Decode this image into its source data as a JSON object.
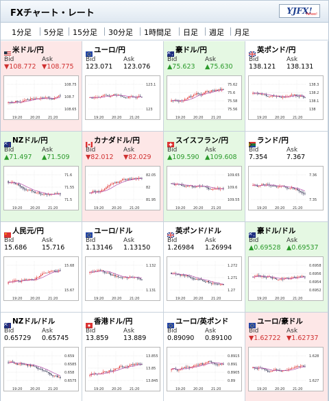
{
  "header": {
    "title": "FXチャート・レート",
    "logo": "YJFX!",
    "logo_sub": "Yahoo!"
  },
  "tabs": [
    "1分足",
    "5分足",
    "15分足",
    "30分足",
    "1時間足",
    "日足",
    "週足",
    "月足"
  ],
  "active_tab": "5分足",
  "colors": {
    "up_bg": "#e5f8e3",
    "down_bg": "#fde7e7",
    "up_text": "#2a9a2a",
    "down_text": "#d03030"
  },
  "pairs": [
    {
      "name": "米ドル/円",
      "flag": "us",
      "trend": "down",
      "bid_label": "Bid",
      "ask_label": "Ask",
      "bid": "▼108.772",
      "ask": "▼108.775",
      "yticks": [
        "108.75",
        "108.7",
        "108.65"
      ],
      "xticks": [
        "19:20",
        "20:20",
        "21:20"
      ],
      "chart_seed": 1,
      "chart_trend": 0.6
    },
    {
      "name": "ユーロ/円",
      "flag": "eu",
      "trend": "none",
      "bid_label": "Bid",
      "ask_label": "Ask",
      "bid": "123.071",
      "ask": "123.076",
      "yticks": [
        "123.1",
        "123"
      ],
      "xticks": [
        "19:20",
        "20:20",
        "21:20"
      ],
      "chart_seed": 2,
      "chart_trend": 0.1
    },
    {
      "name": "豪ドル/円",
      "flag": "au",
      "trend": "up",
      "bid_label": "Bid",
      "ask_label": "Ask",
      "bid": "▲75.623",
      "ask": "▲75.630",
      "yticks": [
        "75.62",
        "75.6",
        "75.58",
        "75.56"
      ],
      "xticks": [
        "19:20",
        "20:20",
        "21:20"
      ],
      "chart_seed": 3,
      "chart_trend": 0.5
    },
    {
      "name": "英ポンド/円",
      "flag": "gb",
      "trend": "none",
      "bid_label": "Bid",
      "ask_label": "Ask",
      "bid": "138.121",
      "ask": "138.131",
      "yticks": [
        "138.3",
        "138.2",
        "138.1",
        "138"
      ],
      "xticks": [
        "19:20",
        "20:20",
        "21:20"
      ],
      "chart_seed": 4,
      "chart_trend": -0.3
    },
    {
      "name": "NZドル/円",
      "flag": "nz",
      "trend": "up",
      "bid_label": "Bid",
      "ask_label": "Ask",
      "bid": "▲71.497",
      "ask": "▲71.509",
      "yticks": [
        "71.6",
        "71.55",
        "71.5"
      ],
      "xticks": [
        "19:20",
        "20:20",
        "21:20"
      ],
      "chart_seed": 5,
      "chart_trend": -0.6
    },
    {
      "name": "カナダドル/円",
      "flag": "ca",
      "trend": "down",
      "bid_label": "Bid",
      "ask_label": "Ask",
      "bid": "▼82.012",
      "ask": "▼82.029",
      "yticks": [
        "82.05",
        "82",
        "81.95"
      ],
      "xticks": [
        "19:20",
        "20:20",
        "21:20"
      ],
      "chart_seed": 6,
      "chart_trend": 0.6
    },
    {
      "name": "スイスフラン/円",
      "flag": "ch",
      "trend": "up",
      "bid_label": "Bid",
      "ask_label": "Ask",
      "bid": "▲109.590",
      "ask": "▲109.608",
      "yticks": [
        "109.65",
        "109.6",
        "109.55"
      ],
      "xticks": [
        "19:20",
        "20:20",
        "21:20"
      ],
      "chart_seed": 7,
      "chart_trend": -0.4
    },
    {
      "name": "ランド/円",
      "flag": "za",
      "trend": "none",
      "bid_label": "Bid",
      "ask_label": "Ask",
      "bid": "7.354",
      "ask": "7.367",
      "yticks": [
        "7.36",
        "7.35"
      ],
      "xticks": [
        "19:20",
        "20:20",
        "21:20"
      ],
      "chart_seed": 8,
      "chart_trend": -0.2
    },
    {
      "name": "人民元/円",
      "flag": "cn",
      "trend": "none",
      "bid_label": "Bid",
      "ask_label": "Ask",
      "bid": "15.686",
      "ask": "15.716",
      "yticks": [
        "15.68",
        "15.67"
      ],
      "xticks": [
        "19:20",
        "20:20",
        "21:20"
      ],
      "chart_seed": 9,
      "chart_trend": 0.6
    },
    {
      "name": "ユーロ/ドル",
      "flag": "eu",
      "trend": "none",
      "bid_label": "Bid",
      "ask_label": "Ask",
      "bid": "1.13146",
      "ask": "1.13150",
      "yticks": [
        "1.132",
        "1.131"
      ],
      "xticks": [
        "19:20",
        "20:20",
        "21:20"
      ],
      "chart_seed": 10,
      "chart_trend": -0.5
    },
    {
      "name": "英ポンド/ドル",
      "flag": "gb",
      "trend": "none",
      "bid_label": "Bid",
      "ask_label": "Ask",
      "bid": "1.26984",
      "ask": "1.26994",
      "yticks": [
        "1.272",
        "1.271",
        "1.27"
      ],
      "xticks": [
        "19:20",
        "20:20",
        "21:20"
      ],
      "chart_seed": 11,
      "chart_trend": -0.5
    },
    {
      "name": "豪ドル/ドル",
      "flag": "au",
      "trend": "up",
      "bid_label": "Bid",
      "ask_label": "Ask",
      "bid": "▲0.69528",
      "ask": "▲0.69537",
      "yticks": [
        "0.6958",
        "0.6956",
        "0.6954",
        "0.6952"
      ],
      "xticks": [
        "19:20",
        "20:20",
        "21:20"
      ],
      "chart_seed": 12,
      "chart_trend": -0.1
    },
    {
      "name": "NZドル/ドル",
      "flag": "nz",
      "trend": "none",
      "bid_label": "Bid",
      "ask_label": "Ask",
      "bid": "0.65729",
      "ask": "0.65745",
      "yticks": [
        "0.659",
        "0.6585",
        "0.658",
        "0.6575"
      ],
      "xticks": [
        "19:20",
        "20:20",
        "21:20"
      ],
      "chart_seed": 13,
      "chart_trend": -0.6
    },
    {
      "name": "香港ドル/円",
      "flag": "hk",
      "trend": "none",
      "bid_label": "Bid",
      "ask_label": "Ask",
      "bid": "13.859",
      "ask": "13.889",
      "yticks": [
        "13.855",
        "13.85",
        "13.845"
      ],
      "xticks": [
        "19:20",
        "20:20",
        "21:20"
      ],
      "chart_seed": 14,
      "chart_trend": 0.8
    },
    {
      "name": "ユーロ/英ポンド",
      "flag": "eu",
      "trend": "none",
      "bid_label": "Bid",
      "ask_label": "Ask",
      "bid": "0.89090",
      "ask": "0.89100",
      "yticks": [
        "0.8915",
        "0.891",
        "0.8905",
        "0.89"
      ],
      "xticks": [
        "19:20",
        "20:20",
        "21:20"
      ],
      "chart_seed": 15,
      "chart_trend": 0.2
    },
    {
      "name": "ユーロ/豪ドル",
      "flag": "eu",
      "trend": "down",
      "bid_label": "Bid",
      "ask_label": "Ask",
      "bid": "▼1.62722",
      "ask": "▼1.62737",
      "yticks": [
        "1.628",
        "1.627"
      ],
      "xticks": [
        "19:20",
        "20:20",
        "21:20"
      ],
      "chart_seed": 16,
      "chart_trend": 0.0
    }
  ]
}
